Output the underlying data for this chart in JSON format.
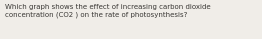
{
  "text_line1": "Which graph shows the effect of increasing carbon dioxide",
  "text_line2": "concentration (CO2 ) on the rate of photosynthesis?",
  "background_color": "#f0ede8",
  "text_color": "#3a3835",
  "font_size": 5.0,
  "fig_width": 2.62,
  "fig_height": 0.39,
  "dpi": 100
}
